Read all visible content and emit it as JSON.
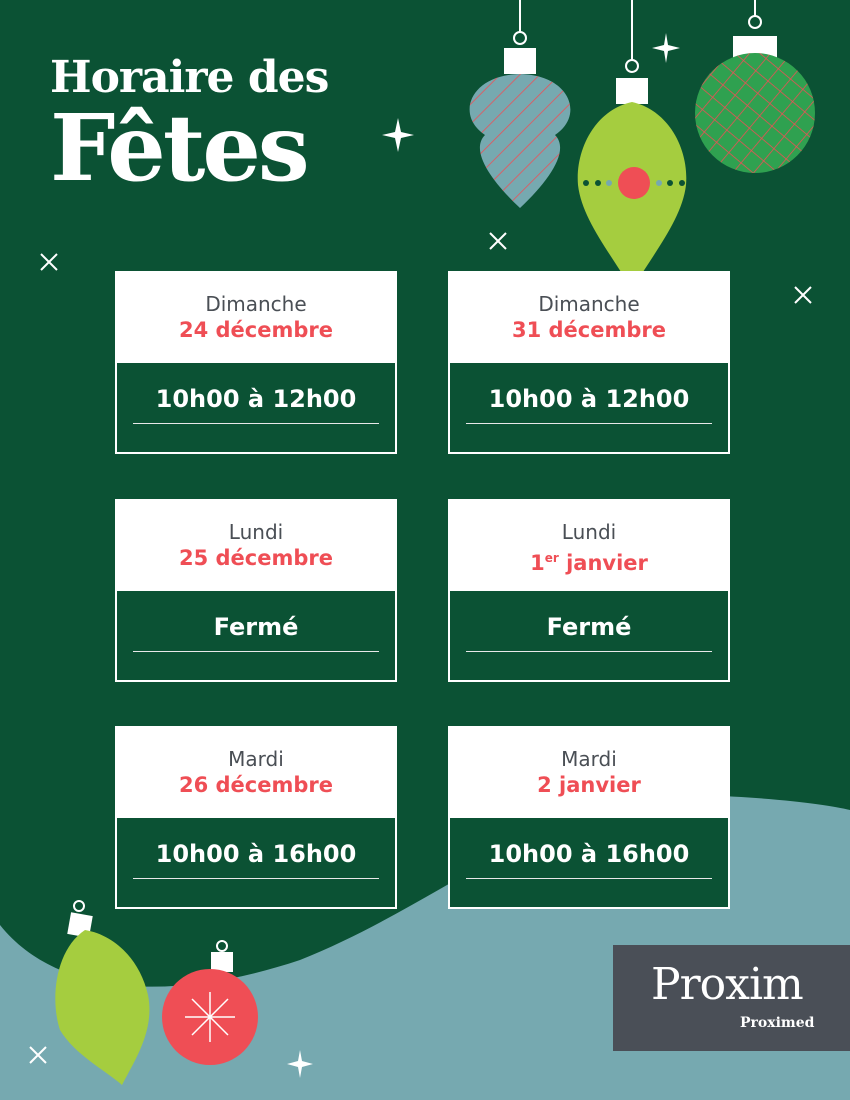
{
  "title": {
    "line1": "Horaire des",
    "line2": "Fêtes"
  },
  "colors": {
    "background": "#0b5234",
    "accent_red": "#ef4e55",
    "teal": "#76a9b0",
    "lime": "#a5cd3f",
    "logo_bg": "#4a4f57"
  },
  "schedule": [
    {
      "day": "Dimanche",
      "date": "24 décembre",
      "hours": "10h00 à 12h00"
    },
    {
      "day": "Dimanche",
      "date": "31 décembre",
      "hours": "10h00 à 12h00"
    },
    {
      "day": "Lundi",
      "date": "25 décembre",
      "hours": "Fermé"
    },
    {
      "day": "Lundi",
      "date_num": "1",
      "date_sup": "er",
      "date_rest": " janvier",
      "hours": "Fermé"
    },
    {
      "day": "Mardi",
      "date": "26 décembre",
      "hours": "10h00 à 16h00"
    },
    {
      "day": "Mardi",
      "date": "2 janvier",
      "hours": "10h00 à 16h00"
    }
  ],
  "logo": {
    "brand": "Proxim",
    "sub_brand": "Proximed"
  }
}
